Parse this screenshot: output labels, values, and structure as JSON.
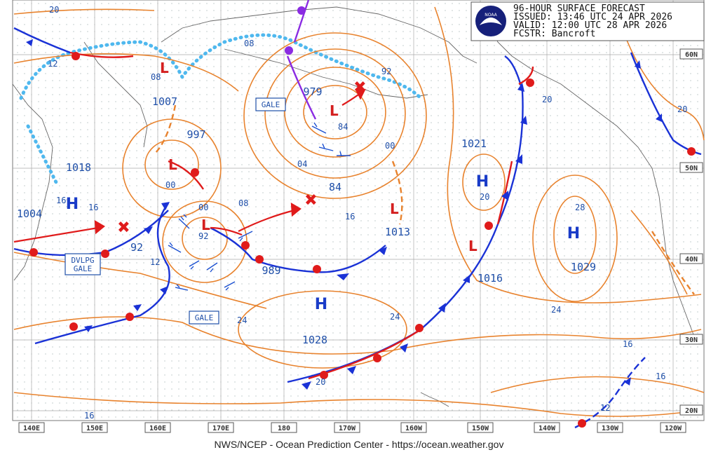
{
  "header": {
    "line1": "96-HOUR SURFACE FORECAST",
    "line2": "ISSUED: 13:46 UTC 24 APR 2026",
    "line3": "VALID:  12:00 UTC 28 APR 2026",
    "line4": "FCSTR:  Bancroft",
    "logo_text": "NOAA"
  },
  "lon_labels": [
    "140E",
    "150E",
    "160E",
    "170E",
    "180",
    "170W",
    "160W",
    "150W",
    "140W",
    "130W",
    "120W"
  ],
  "lat_labels": [
    "60N",
    "50N",
    "40N",
    "30N",
    "20N"
  ],
  "highs": [
    {
      "letter": "H",
      "pressure": "1018"
    },
    {
      "letter": "H",
      "pressure": "1021"
    },
    {
      "letter": "H",
      "pressure": "1029"
    },
    {
      "letter": "H",
      "pressure": "1028"
    }
  ],
  "lows": [
    {
      "letter": "L",
      "pressure": "1007"
    },
    {
      "letter": "L",
      "pressure": "997"
    },
    {
      "letter": "L",
      "pressure": "979"
    },
    {
      "letter": "L",
      "pressure": "989"
    },
    {
      "letter": "L",
      "pressure": "1013"
    },
    {
      "letter": "L",
      "pressure": "1016"
    },
    {
      "letter": "L",
      "pressure": "1004"
    }
  ],
  "isobar_labels": [
    "20",
    "12",
    "08",
    "08",
    "92",
    "00",
    "04",
    "84",
    "84",
    "16",
    "00",
    "20",
    "20",
    "28",
    "24",
    "24",
    "16",
    "16",
    "12",
    "92",
    "00",
    "08",
    "12",
    "16",
    "16",
    "92",
    "24",
    "20",
    "16",
    "20"
  ],
  "warnings": [
    "GALE",
    "GALE",
    "DVLPG GALE"
  ],
  "footer": "NWS/NCEP - Ocean Prediction Center - https://ocean.weather.gov",
  "colors": {
    "isobar": "#e8832e",
    "front_blue": "#1a32d6",
    "front_red": "#e01b1b",
    "ice": "#4fb8ee",
    "label": "#1f4fa8"
  }
}
